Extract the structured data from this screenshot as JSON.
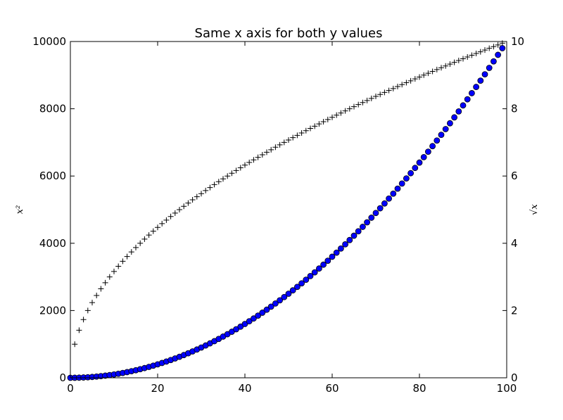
{
  "chart_data": {
    "type": "scatter",
    "title": "Same x axis for both y values",
    "xlabel": "",
    "ylabel_left": "x²",
    "ylabel_right": "√x",
    "xlim": [
      0,
      100
    ],
    "ylim_left": [
      0,
      10000
    ],
    "ylim_right": [
      0,
      10
    ],
    "x_ticks": [
      "0",
      "20",
      "40",
      "60",
      "80",
      "100"
    ],
    "y_left_ticks": [
      "0",
      "2000",
      "4000",
      "6000",
      "8000",
      "10000"
    ],
    "y_right_ticks": [
      "0",
      "2",
      "4",
      "6",
      "8",
      "10"
    ],
    "grid": false,
    "x": [
      0,
      1,
      2,
      3,
      4,
      5,
      6,
      7,
      8,
      9,
      10,
      11,
      12,
      13,
      14,
      15,
      16,
      17,
      18,
      19,
      20,
      21,
      22,
      23,
      24,
      25,
      26,
      27,
      28,
      29,
      30,
      31,
      32,
      33,
      34,
      35,
      36,
      37,
      38,
      39,
      40,
      41,
      42,
      43,
      44,
      45,
      46,
      47,
      48,
      49,
      50,
      51,
      52,
      53,
      54,
      55,
      56,
      57,
      58,
      59,
      60,
      61,
      62,
      63,
      64,
      65,
      66,
      67,
      68,
      69,
      70,
      71,
      72,
      73,
      74,
      75,
      76,
      77,
      78,
      79,
      80,
      81,
      82,
      83,
      84,
      85,
      86,
      87,
      88,
      89,
      90,
      91,
      92,
      93,
      94,
      95,
      96,
      97,
      98,
      99
    ],
    "series": [
      {
        "axis": "left",
        "marker": "circle",
        "color": "#0000ff",
        "values": [
          0,
          1,
          4,
          9,
          16,
          25,
          36,
          49,
          64,
          81,
          100,
          121,
          144,
          169,
          196,
          225,
          256,
          289,
          324,
          361,
          400,
          441,
          484,
          529,
          576,
          625,
          676,
          729,
          784,
          841,
          900,
          961,
          1024,
          1089,
          1156,
          1225,
          1296,
          1369,
          1444,
          1521,
          1600,
          1681,
          1764,
          1849,
          1936,
          2025,
          2116,
          2209,
          2304,
          2401,
          2500,
          2601,
          2704,
          2809,
          2916,
          3025,
          3136,
          3249,
          3364,
          3481,
          3600,
          3721,
          3844,
          3969,
          4096,
          4225,
          4356,
          4489,
          4624,
          4761,
          4900,
          5041,
          5184,
          5329,
          5476,
          5625,
          5776,
          5929,
          6084,
          6241,
          6400,
          6561,
          6724,
          6889,
          7056,
          7225,
          7396,
          7569,
          7744,
          7921,
          8100,
          8281,
          8464,
          8649,
          8836,
          9025,
          9216,
          9409,
          9604,
          9801
        ]
      },
      {
        "axis": "right",
        "marker": "plus",
        "color": "#000000",
        "values": [
          0,
          1,
          1.414,
          1.732,
          2,
          2.236,
          2.449,
          2.646,
          2.828,
          3,
          3.162,
          3.317,
          3.464,
          3.606,
          3.742,
          3.873,
          4,
          4.123,
          4.243,
          4.359,
          4.472,
          4.583,
          4.69,
          4.796,
          4.899,
          5,
          5.099,
          5.196,
          5.292,
          5.385,
          5.477,
          5.568,
          5.657,
          5.745,
          5.831,
          5.916,
          6,
          6.083,
          6.164,
          6.245,
          6.325,
          6.403,
          6.481,
          6.557,
          6.633,
          6.708,
          6.782,
          6.856,
          6.928,
          7,
          7.071,
          7.141,
          7.211,
          7.28,
          7.348,
          7.416,
          7.483,
          7.55,
          7.616,
          7.681,
          7.746,
          7.81,
          7.874,
          7.937,
          8,
          8.062,
          8.124,
          8.185,
          8.246,
          8.307,
          8.367,
          8.426,
          8.485,
          8.544,
          8.602,
          8.66,
          8.718,
          8.775,
          8.832,
          8.888,
          8.944,
          9,
          9.055,
          9.11,
          9.165,
          9.22,
          9.274,
          9.327,
          9.381,
          9.434,
          9.487,
          9.539,
          9.592,
          9.644,
          9.695,
          9.747,
          9.798,
          9.849,
          9.899,
          9.95
        ]
      }
    ]
  }
}
